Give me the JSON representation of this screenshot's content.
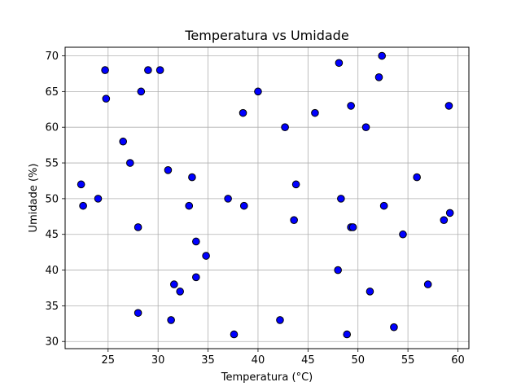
{
  "chart_data": {
    "type": "scatter",
    "title": "Temperatura vs Umidade",
    "xlabel": "Temperatura (°C)",
    "ylabel": "Umidade (%)",
    "xlim": [
      20.7,
      61.1
    ],
    "ylim": [
      29,
      71.2
    ],
    "xticks": [
      25,
      30,
      35,
      40,
      45,
      50,
      55,
      60
    ],
    "yticks": [
      30,
      35,
      40,
      45,
      50,
      55,
      60,
      65,
      70
    ],
    "grid": true,
    "marker_color": "#0000ff",
    "marker_edge_color": "#000000",
    "series": [
      {
        "points": [
          [
            22.3,
            52
          ],
          [
            22.5,
            49
          ],
          [
            24.0,
            50
          ],
          [
            24.7,
            68
          ],
          [
            24.8,
            64
          ],
          [
            26.5,
            58
          ],
          [
            27.2,
            55
          ],
          [
            28.0,
            34
          ],
          [
            28.0,
            46
          ],
          [
            28.3,
            65
          ],
          [
            29.0,
            68
          ],
          [
            30.2,
            68
          ],
          [
            31.0,
            54
          ],
          [
            31.3,
            33
          ],
          [
            31.6,
            38
          ],
          [
            32.2,
            37
          ],
          [
            33.1,
            49
          ],
          [
            33.4,
            53
          ],
          [
            33.8,
            44
          ],
          [
            33.8,
            39
          ],
          [
            34.8,
            42
          ],
          [
            37.0,
            50
          ],
          [
            37.6,
            31
          ],
          [
            38.5,
            62
          ],
          [
            38.6,
            49
          ],
          [
            40.0,
            65
          ],
          [
            42.2,
            33
          ],
          [
            42.7,
            60
          ],
          [
            43.6,
            47
          ],
          [
            43.8,
            52
          ],
          [
            45.7,
            62
          ],
          [
            48.0,
            40
          ],
          [
            48.1,
            69
          ],
          [
            48.3,
            50
          ],
          [
            48.9,
            31
          ],
          [
            49.3,
            63
          ],
          [
            49.3,
            46
          ],
          [
            49.5,
            46
          ],
          [
            50.8,
            60
          ],
          [
            51.2,
            37
          ],
          [
            52.1,
            67
          ],
          [
            52.4,
            70
          ],
          [
            52.6,
            49
          ],
          [
            53.6,
            32
          ],
          [
            54.5,
            45
          ],
          [
            55.9,
            53
          ],
          [
            57.0,
            38
          ],
          [
            58.6,
            47
          ],
          [
            59.1,
            63
          ],
          [
            59.2,
            48
          ]
        ]
      }
    ]
  }
}
